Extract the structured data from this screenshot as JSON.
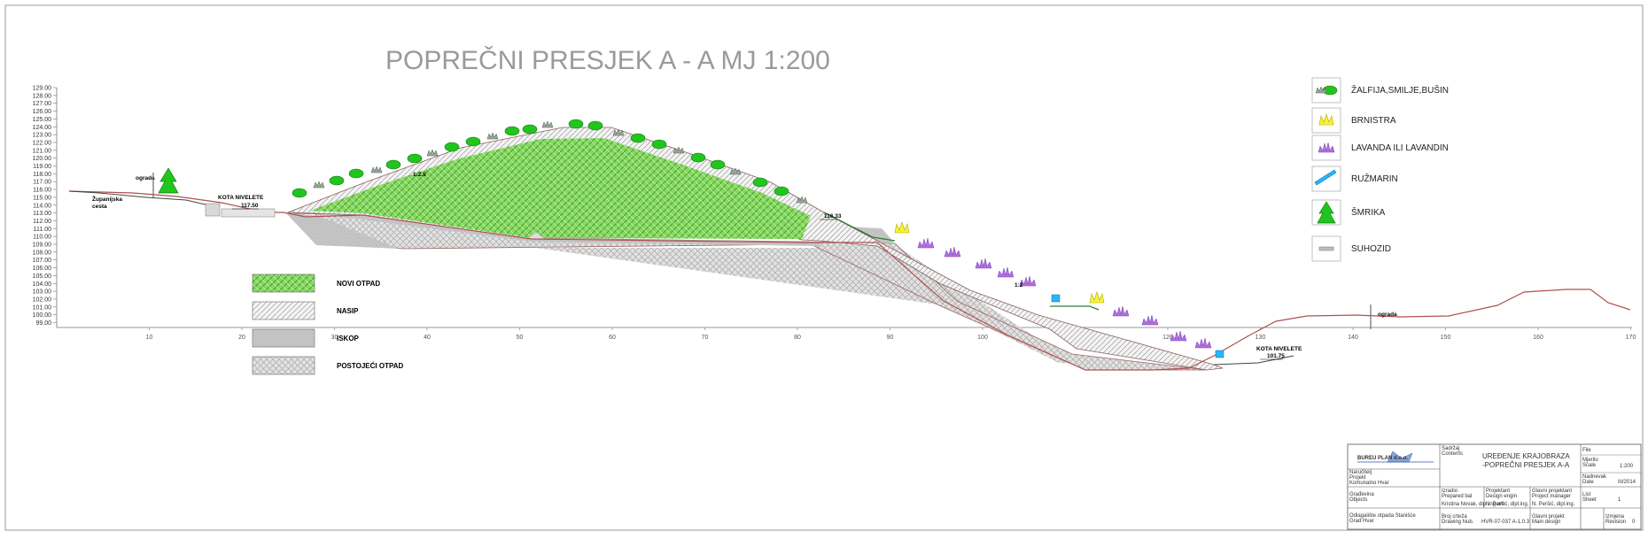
{
  "title": "POPREČNI PRESJEK  A - A  MJ 1:200",
  "y_ticks": [
    "129.00",
    "128.00",
    "127.00",
    "126.00",
    "125.00",
    "124.00",
    "123.00",
    "122.00",
    "121.00",
    "120.00",
    "119.00",
    "118.00",
    "117.00",
    "116.00",
    "115.00",
    "114.00",
    "113.00",
    "112.00",
    "111.00",
    "110.00",
    "109.00",
    "108.00",
    "107.00",
    "106.00",
    "105.00",
    "104.00",
    "103.00",
    "102.00",
    "101.00",
    "100.00",
    "99.00"
  ],
  "x_ticks": [
    "10",
    "20",
    "30",
    "40",
    "50",
    "60",
    "70",
    "80",
    "90",
    "100",
    "110",
    "120",
    "130",
    "140",
    "150",
    "160",
    "170"
  ],
  "annotations": {
    "zupanijska": "Županijska",
    "cesta": "cesta",
    "ograda_left": "ograda",
    "kota_left": "KOTA  NIVELETE",
    "kota_left_val": "117.50",
    "slope_top": "1:2.5",
    "level_mid": "116.33",
    "slope_mid": "1:2",
    "kota_right": "KOTA  NIVELETE",
    "kota_right_val": "101.75",
    "ograda_right": "ograda"
  },
  "material_legend": [
    {
      "label": "NOVI OTPAD",
      "pattern": "novi"
    },
    {
      "label": "NASIP",
      "pattern": "nasip"
    },
    {
      "label": "ISKOP",
      "pattern": "iskop"
    },
    {
      "label": "POSTOJEĆI OTPAD",
      "pattern": "postojeci"
    }
  ],
  "plant_legend": [
    {
      "label": "ŽALFIJA,SMILJE,BUŠIN",
      "icon": "sage-shrub-icon"
    },
    {
      "label": "BRNISTRA",
      "icon": "broom-shrub-icon"
    },
    {
      "label": "LAVANDA  ILI  LAVANDIN",
      "icon": "lavender-shrub-icon"
    },
    {
      "label": "RUŽMARIN",
      "icon": "rosemary-icon"
    },
    {
      "label": "ŠMRIKA",
      "icon": "juniper-tree-icon"
    },
    {
      "label": "SUHOZID",
      "icon": "drystone-wall-icon"
    }
  ],
  "title_block": {
    "company": "BUREU  PLAN d.o.o.",
    "investor_label": "Naručitelj",
    "project_label": "Projekt",
    "project_value": "Komunalno Hvar",
    "contents_label": "Sadržaj",
    "contents_en": "Contents",
    "contents_line1": "UREĐENJE KRAJOBRAZA",
    "contents_line2": "-POPREČNI PRESJEK A-A",
    "file_label": "File",
    "scale_label": "Mjerilo",
    "scale_en": "Scale",
    "scale_value": "1:200",
    "date_label": "Nadnevak",
    "date_en": "Date",
    "date_value": "III/2014",
    "building_label": "Građevina",
    "building_en": "Objects",
    "location_label": "Odlagalište otpada Stanišće",
    "location_value": "Grad Hvar",
    "prepared_label": "Izradio",
    "prepared_en": "Prepared bal",
    "prepared_value": "Kristina Novak, dipl.ing.arh.",
    "designer_label": "Projektant",
    "designer_en": "Design engin",
    "designer_value": "N. Peršić, dipl.ing.",
    "manager_label": "Glavni projektant",
    "manager_en": "Project manager",
    "manager_value": "N. Peršić, dipl.ing.",
    "sheet_label": "List",
    "sheet_en": "Sheet",
    "sheet_value": "1",
    "drawing_label": "Broj crteža",
    "drawing_en": "Drawing Nub.",
    "drawing_value": "HVR-07-037 A-1.0.3",
    "main_design_label": "Glavni projekt",
    "main_design_en": "Main design",
    "revision_label": "Izmjena",
    "revision_en": "Revision",
    "revision_value": "0"
  },
  "colors": {
    "novi_otpad": "#7dd35a",
    "terrain_line": "#b05050",
    "slope_line": "#2e7d32",
    "lavender": "#b070e0",
    "broom": "#f4f43a",
    "rosemary": "#29b6f6",
    "sage": "#22c41e"
  }
}
